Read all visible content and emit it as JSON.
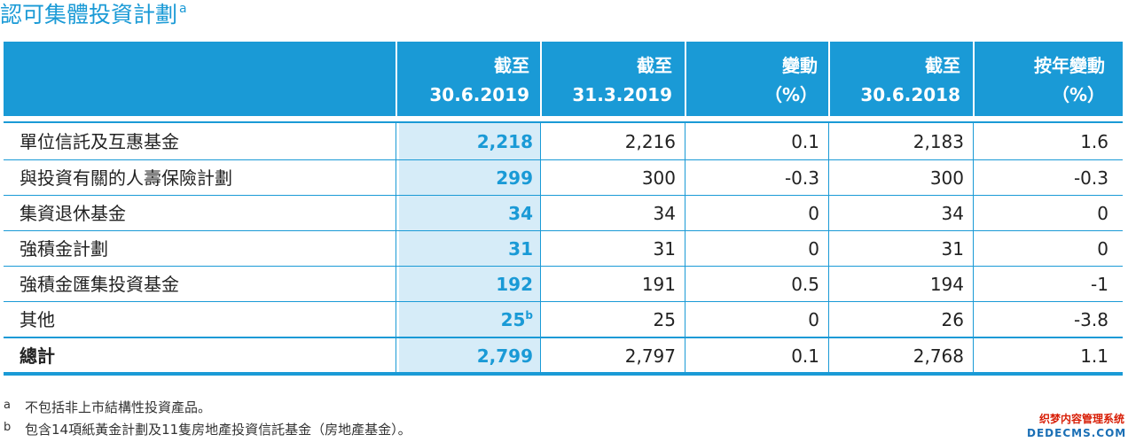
{
  "title": {
    "text": "認可集體投資計劃",
    "sup": "a"
  },
  "columns": [
    {
      "line1": "截至",
      "line2": "30.6.2019"
    },
    {
      "line1": "截至",
      "line2": "31.3.2019"
    },
    {
      "line1": "變動",
      "line2": "（%）"
    },
    {
      "line1": "截至",
      "line2": "30.6.2018"
    },
    {
      "line1": "按年變動",
      "line2": "（%）"
    }
  ],
  "rows": [
    {
      "label": "單位信託及互惠基金",
      "c1": "2,218",
      "c1_sup": "",
      "c2": "2,216",
      "c3": "0.1",
      "c4": "2,183",
      "c5": "1.6"
    },
    {
      "label": "與投資有關的人壽保險計劃",
      "c1": "299",
      "c1_sup": "",
      "c2": "300",
      "c3": "-0.3",
      "c4": "300",
      "c5": "-0.3"
    },
    {
      "label": "集資退休基金",
      "c1": "34",
      "c1_sup": "",
      "c2": "34",
      "c3": "0",
      "c4": "34",
      "c5": "0"
    },
    {
      "label": "強積金計劃",
      "c1": "31",
      "c1_sup": "",
      "c2": "31",
      "c3": "0",
      "c4": "31",
      "c5": "0"
    },
    {
      "label": "強積金匯集投資基金",
      "c1": "192",
      "c1_sup": "",
      "c2": "191",
      "c3": "0.5",
      "c4": "194",
      "c5": "-1"
    },
    {
      "label": "其他",
      "c1": "25",
      "c1_sup": "b",
      "c2": "25",
      "c3": "0",
      "c4": "26",
      "c5": "-3.8"
    }
  ],
  "total": {
    "label": "總計",
    "c1": "2,799",
    "c2": "2,797",
    "c3": "0.1",
    "c4": "2,768",
    "c5": "1.1"
  },
  "notes": [
    {
      "mark": "a",
      "text": "不包括非上市結構性投資產品。"
    },
    {
      "mark": "b",
      "text": "包含14項紙黃金計劃及11隻房地產投資信託基金（房地產基金）。"
    }
  ],
  "watermark": {
    "line1": "织梦内容管理系统",
    "line2": "DEDECMS.COM"
  },
  "colors": {
    "accent": "#1a9ad6",
    "highlight": "#d6ecf8",
    "header_text": "#ffffff"
  }
}
